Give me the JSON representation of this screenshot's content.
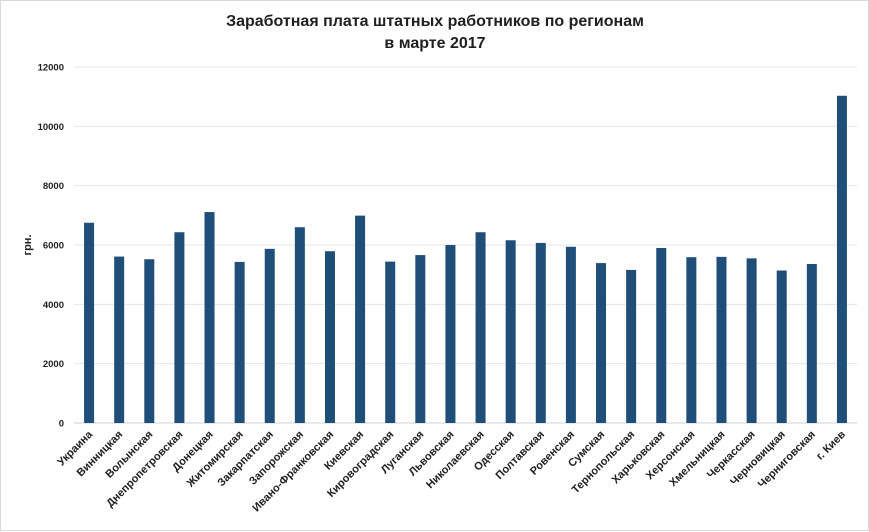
{
  "chart_data": {
    "type": "bar",
    "title": [
      "Заработная плата штатных работников по регионам",
      "в марте 2017"
    ],
    "ylabel": "грн.",
    "xlabel": "",
    "ylim": [
      0,
      12000
    ],
    "yticks": [
      0,
      2000,
      4000,
      6000,
      8000,
      10000,
      12000
    ],
    "grid": true,
    "bar_color": "#1f4e79",
    "categories": [
      "Украина",
      "Винницкая",
      "Волынская",
      "Днепропетровская",
      "Донецкая",
      "Житомирская",
      "Закарпатская",
      "Запорожская",
      "Ивано-Франковская",
      "Киевская",
      "Кировоградская",
      "Луганская",
      "Львовская",
      "Николаевская",
      "Одесская",
      "Полтавская",
      "Ровенская",
      "Сумская",
      "Тернопольская",
      "Харьковская",
      "Херсонская",
      "Хмельницкая",
      "Черкасская",
      "Черновицкая",
      "Черниговская",
      "г. Киев"
    ],
    "values": [
      6750,
      5610,
      5520,
      6430,
      7110,
      5430,
      5870,
      6600,
      5790,
      6990,
      5440,
      5660,
      6000,
      6430,
      6160,
      6070,
      5940,
      5390,
      5160,
      5900,
      5590,
      5600,
      5550,
      5140,
      5360,
      11030
    ]
  }
}
